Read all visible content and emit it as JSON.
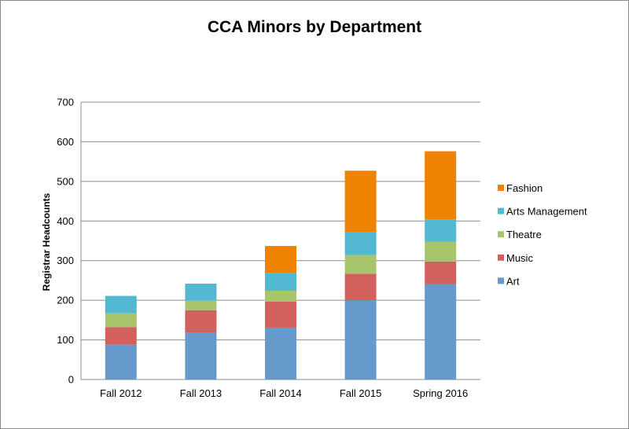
{
  "chart_data": {
    "type": "bar",
    "stacked": true,
    "title": "CCA Minors by Department",
    "xlabel": "",
    "ylabel": "Registrar Headcounts",
    "ylim": [
      0,
      700
    ],
    "yticks": [
      0,
      100,
      200,
      300,
      400,
      500,
      600,
      700
    ],
    "grid": true,
    "legend_position": "right",
    "categories": [
      "Fall 2012",
      "Fall 2013",
      "Fall 2014",
      "Fall 2015",
      "Spring 2016"
    ],
    "series": [
      {
        "name": "Art",
        "color": "#6699cc",
        "values": [
          88,
          119,
          131,
          200,
          241
        ]
      },
      {
        "name": "Music",
        "color": "#d2605c",
        "values": [
          44,
          56,
          66,
          67,
          57
        ]
      },
      {
        "name": "Theatre",
        "color": "#a9c56b",
        "values": [
          35,
          24,
          27,
          47,
          50
        ]
      },
      {
        "name": "Arts Management",
        "color": "#53b9d2",
        "values": [
          44,
          43,
          45,
          58,
          56
        ]
      },
      {
        "name": "Fashion",
        "color": "#ef8200",
        "values": [
          0,
          0,
          68,
          155,
          172
        ]
      }
    ]
  }
}
